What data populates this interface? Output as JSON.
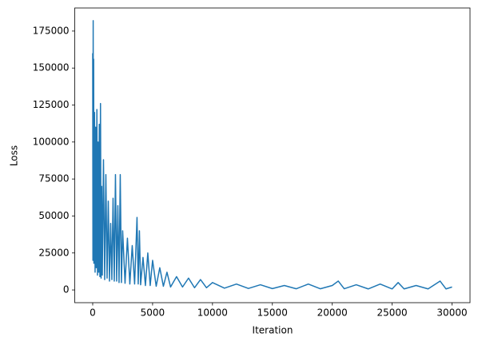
{
  "chart_data": {
    "type": "line",
    "xlabel": "Iteration",
    "ylabel": "Loss",
    "x": [
      0,
      20,
      40,
      60,
      80,
      100,
      150,
      200,
      250,
      300,
      350,
      400,
      450,
      500,
      550,
      600,
      650,
      700,
      750,
      800,
      900,
      1000,
      1100,
      1200,
      1300,
      1400,
      1500,
      1600,
      1700,
      1800,
      1900,
      2000,
      2100,
      2200,
      2300,
      2400,
      2500,
      2700,
      2900,
      3100,
      3300,
      3500,
      3700,
      3800,
      3900,
      4000,
      4200,
      4400,
      4600,
      4800,
      5000,
      5300,
      5600,
      5900,
      6200,
      6500,
      7000,
      7500,
      8000,
      8500,
      9000,
      9500,
      10000,
      11000,
      12000,
      13000,
      14000,
      15000,
      16000,
      17000,
      18000,
      19000,
      20000,
      20500,
      21000,
      22000,
      23000,
      24000,
      25000,
      25500,
      26000,
      27000,
      28000,
      29000,
      29500,
      30000
    ],
    "values": [
      160000,
      20000,
      182000,
      25000,
      156000,
      18000,
      120000,
      12000,
      110000,
      15000,
      122000,
      10000,
      100000,
      12000,
      112000,
      9000,
      126000,
      8000,
      70000,
      10000,
      88000,
      7000,
      78000,
      8000,
      60000,
      6000,
      45000,
      7000,
      62000,
      6000,
      78000,
      6000,
      57000,
      5000,
      78000,
      5000,
      40000,
      4500,
      35000,
      4000,
      30000,
      4000,
      49000,
      4000,
      40000,
      3500,
      22000,
      3000,
      25000,
      3000,
      20000,
      2500,
      15000,
      2500,
      12000,
      2000,
      9000,
      2000,
      8000,
      1500,
      7000,
      1500,
      5000,
      1200,
      4000,
      1000,
      3500,
      900,
      3000,
      800,
      4000,
      800,
      3000,
      6000,
      800,
      3500,
      700,
      4000,
      700,
      5000,
      700,
      3000,
      700,
      6000,
      700,
      2000
    ],
    "color": "#1f77b4",
    "xlim": [
      -1500,
      31500
    ],
    "xticks": [
      0,
      5000,
      10000,
      15000,
      20000,
      25000,
      30000
    ],
    "ylim": [
      -8600,
      190600
    ],
    "yticks": [
      0,
      25000,
      50000,
      75000,
      100000,
      125000,
      150000,
      175000
    ],
    "grid": false
  }
}
